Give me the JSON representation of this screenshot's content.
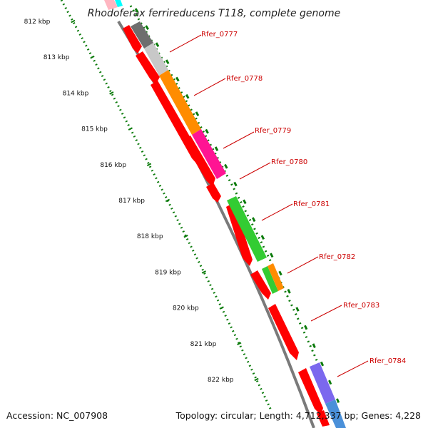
{
  "title": "Rhodoferax ferrireducens T118, complete genome",
  "footer": {
    "accession": "Accession: NC_007908",
    "stats": "Topology: circular; Length: 4,712,337 bp; Genes: 4,228"
  },
  "colors": {
    "label": "#cc0000",
    "ruler": "#0a7a0a",
    "backbone": "#808080",
    "red": "#ff0000",
    "orange": "#ff8c00",
    "magenta": "#ff1493",
    "green": "#33cc33",
    "gray_light": "#c8c8c8",
    "gray_dark": "#6e6e6e",
    "purple": "#7b68ee",
    "blue": "#4a90d9"
  },
  "ruler": {
    "unit": "kbp",
    "ticks": [
      {
        "kbp": 812,
        "label": "812 kbp"
      },
      {
        "kbp": 813,
        "label": "813 kbp"
      },
      {
        "kbp": 814,
        "label": "814 kbp"
      },
      {
        "kbp": 815,
        "label": "815 kbp"
      },
      {
        "kbp": 816,
        "label": "816 kbp"
      },
      {
        "kbp": 817,
        "label": "817 kbp"
      },
      {
        "kbp": 818,
        "label": "818 kbp"
      },
      {
        "kbp": 819,
        "label": "819 kbp"
      },
      {
        "kbp": 820,
        "label": "820 kbp"
      },
      {
        "kbp": 821,
        "label": "821 kbp"
      },
      {
        "kbp": 822,
        "label": "822 kbp"
      }
    ]
  },
  "genes": [
    {
      "name": "Rfer_0777"
    },
    {
      "name": "Rfer_0778"
    },
    {
      "name": "Rfer_0779"
    },
    {
      "name": "Rfer_0780"
    },
    {
      "name": "Rfer_0781"
    },
    {
      "name": "Rfer_0782"
    },
    {
      "name": "Rfer_0783"
    },
    {
      "name": "Rfer_0784"
    }
  ]
}
